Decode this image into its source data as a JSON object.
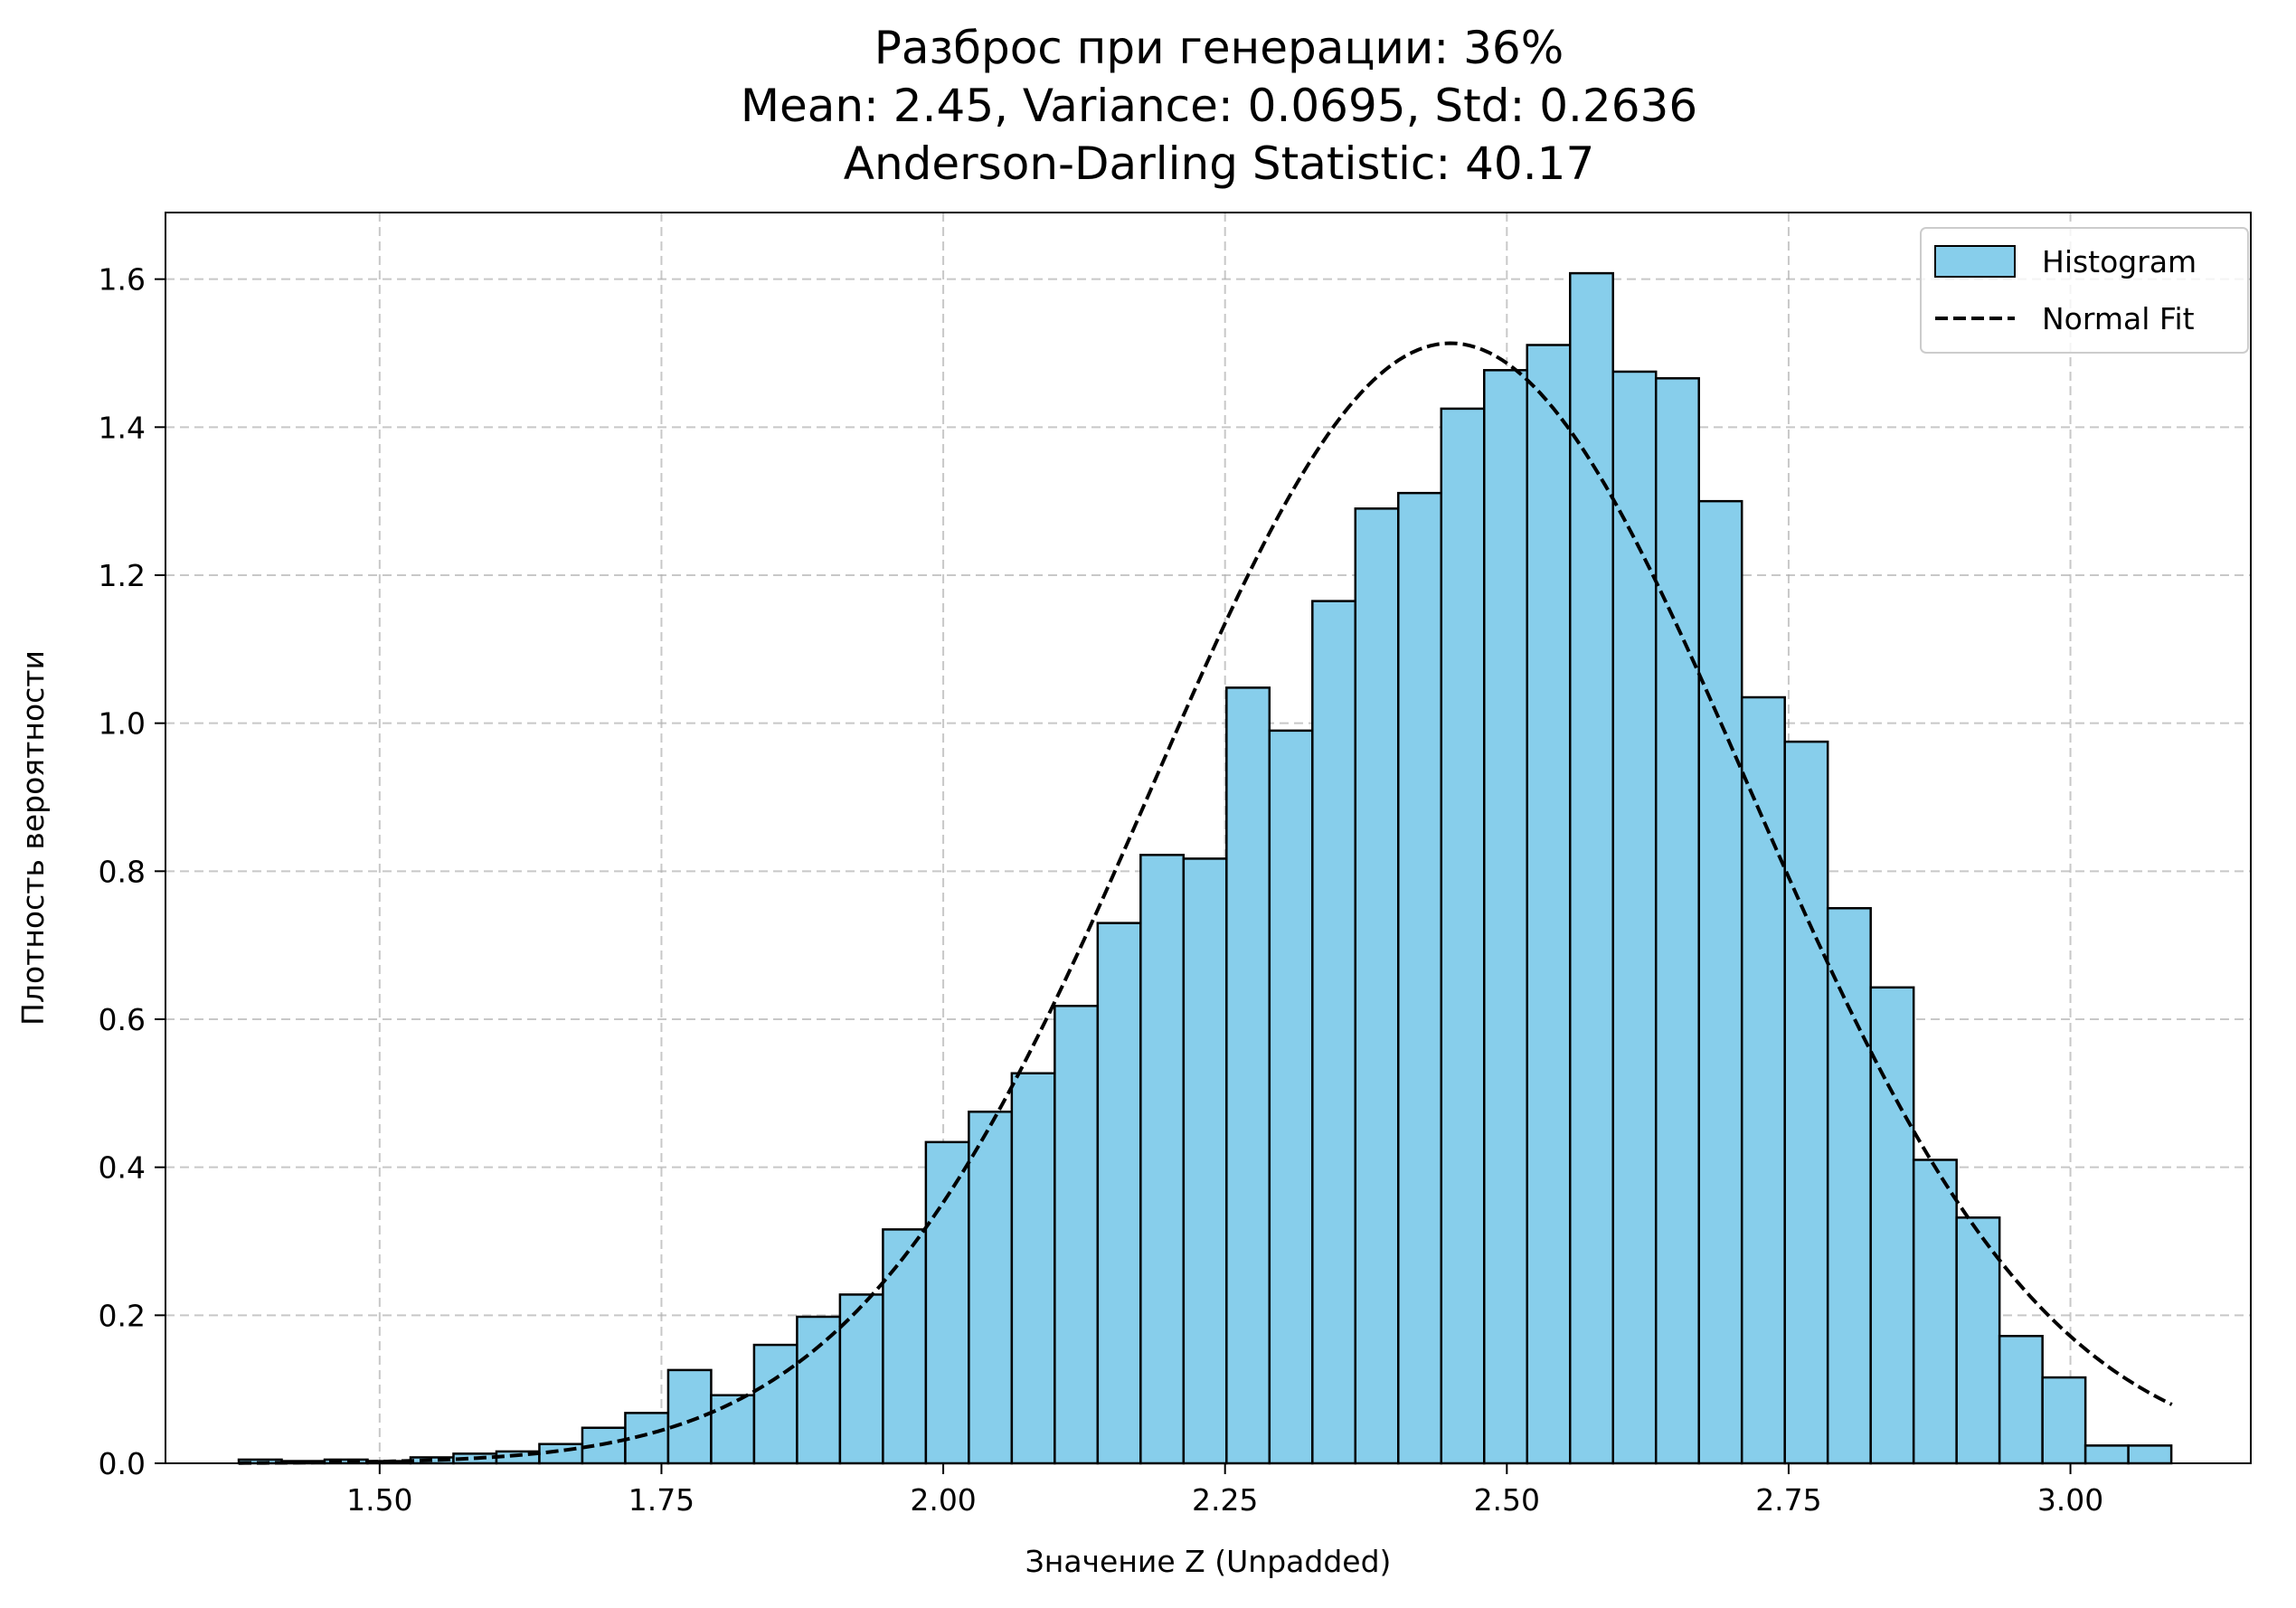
{
  "chart_data": {
    "type": "bar",
    "title_lines": [
      "Разброс при генерации: 36%",
      "Mean: 2.45, Variance: 0.0695, Std: 0.2636",
      "Anderson-Darling Statistic: 40.17"
    ],
    "xlabel": "Значение Z (Unpadded)",
    "ylabel": "Плотность вероятности",
    "xlim": [
      1.31,
      3.16
    ],
    "ylim": [
      0,
      1.69
    ],
    "xticks": [
      "1.50",
      "1.75",
      "2.00",
      "2.25",
      "2.50",
      "2.75",
      "3.00"
    ],
    "yticks": [
      "0.0",
      "0.2",
      "0.4",
      "0.6",
      "0.8",
      "1.0",
      "1.2",
      "1.4",
      "1.6"
    ],
    "grid": true,
    "legend_position": "top-right",
    "legend": [
      "Histogram",
      "Normal Fit"
    ],
    "histogram": {
      "name": "Histogram",
      "bin_start": 1.375,
      "bin_width": 0.0381,
      "values": [
        0.005,
        0.003,
        0.005,
        0.003,
        0.008,
        0.013,
        0.016,
        0.026,
        0.048,
        0.068,
        0.126,
        0.092,
        0.16,
        0.198,
        0.228,
        0.316,
        0.434,
        0.475,
        0.527,
        0.618,
        0.73,
        0.822,
        0.817,
        1.048,
        0.99,
        1.165,
        1.29,
        1.311,
        1.425,
        1.477,
        1.511,
        1.608,
        1.475,
        1.466,
        1.3,
        1.035,
        0.975,
        0.75,
        0.643,
        0.41,
        0.332,
        0.172,
        0.116,
        0.024,
        0.024
      ],
      "fill_color": "#87ceeb",
      "edge_color": "#000000"
    },
    "normal_fit": {
      "name": "Normal Fit",
      "mean": 2.45,
      "std": 0.2636,
      "x_range": [
        1.375,
        3.09
      ],
      "color": "#000000",
      "style": "dashed"
    }
  }
}
